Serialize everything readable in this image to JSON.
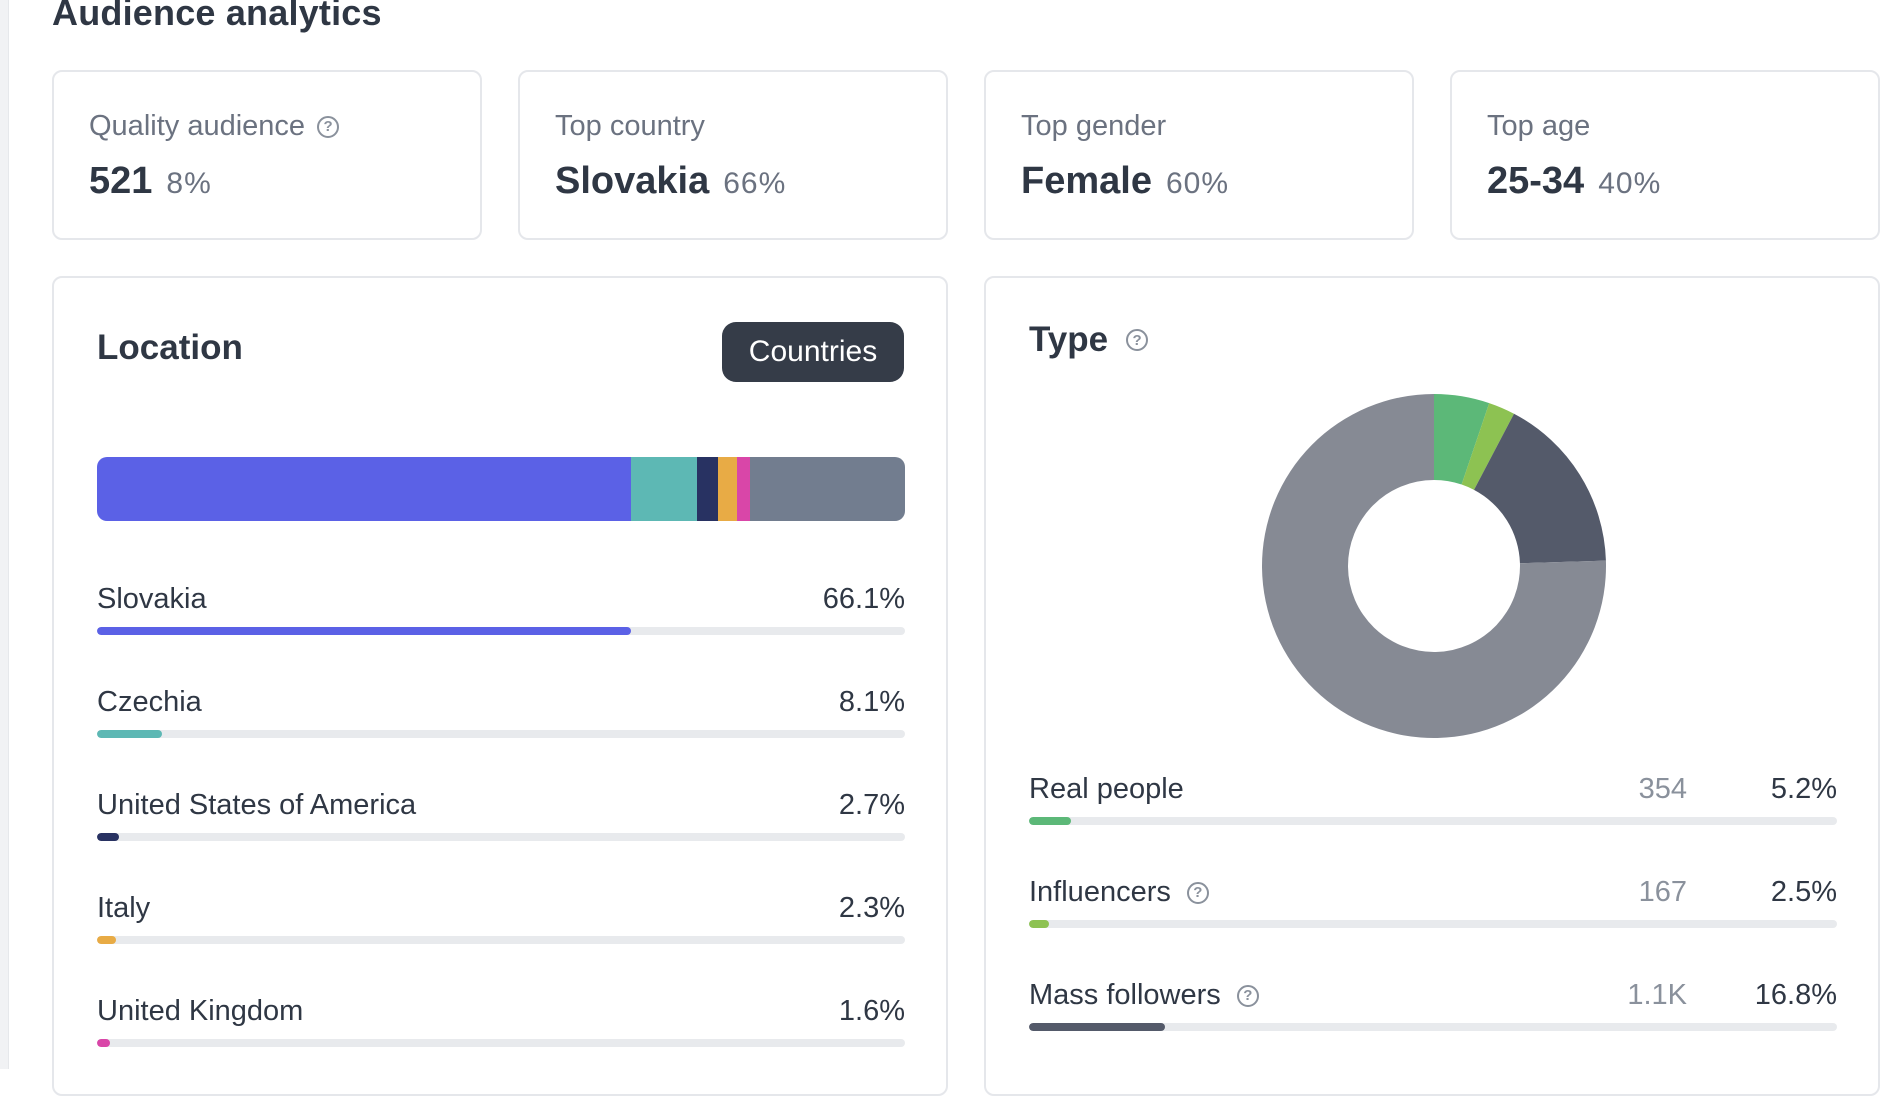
{
  "page": {
    "title": "Audience analytics"
  },
  "stats": [
    {
      "label": "Quality audience",
      "value": "521",
      "pct": "8%",
      "help": true
    },
    {
      "label": "Top country",
      "value": "Slovakia",
      "pct": "66%",
      "help": false
    },
    {
      "label": "Top gender",
      "value": "Female",
      "pct": "60%",
      "help": false
    },
    {
      "label": "Top age",
      "value": "25-34",
      "pct": "40%",
      "help": false
    }
  ],
  "location": {
    "title": "Location",
    "button_label": "Countries",
    "colors": [
      "#5b61e6",
      "#5db8b4",
      "#283262",
      "#e8ab45",
      "#d946a8",
      "#727d8f"
    ],
    "stacked_shares": [
      66.1,
      8.1,
      2.7,
      2.3,
      1.6,
      19.2
    ],
    "rows": [
      {
        "name": "Slovakia",
        "value": "66.1%",
        "share": 66.1,
        "color": "#5b61e6"
      },
      {
        "name": "Czechia",
        "value": "8.1%",
        "share": 8.1,
        "color": "#5db8b4"
      },
      {
        "name": "United States of America",
        "value": "2.7%",
        "share": 2.7,
        "color": "#283262"
      },
      {
        "name": "Italy",
        "value": "2.3%",
        "share": 2.3,
        "color": "#e8ab45"
      },
      {
        "name": "United Kingdom",
        "value": "1.6%",
        "share": 1.6,
        "color": "#d946a8"
      }
    ]
  },
  "type": {
    "title": "Type",
    "donut": [
      {
        "share": 5.2,
        "color": "#5cb878"
      },
      {
        "share": 2.5,
        "color": "#8dc252"
      },
      {
        "share": 16.8,
        "color": "#545a6a"
      },
      {
        "share": 75.5,
        "color": "#868a94"
      }
    ],
    "rows": [
      {
        "name": "Real people",
        "count": "354",
        "value": "5.2%",
        "share": 5.2,
        "color": "#5cb878",
        "help": false
      },
      {
        "name": "Influencers",
        "count": "167",
        "value": "2.5%",
        "share": 2.5,
        "color": "#8dc252",
        "help": true
      },
      {
        "name": "Mass followers",
        "count": "1.1K",
        "value": "16.8%",
        "share": 16.8,
        "color": "#545a6a",
        "help": true
      }
    ]
  },
  "icons": {
    "help": "help-circle-icon",
    "help_glyph": "?"
  }
}
